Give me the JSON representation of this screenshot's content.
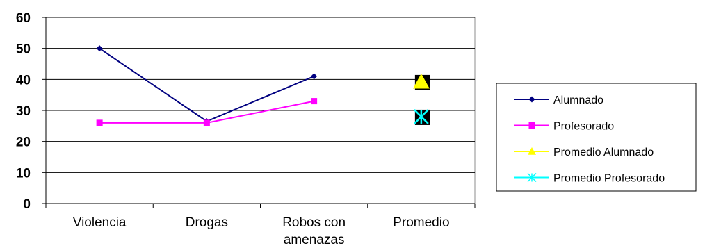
{
  "chart_data": {
    "type": "line",
    "categories": [
      "Violencia",
      "Drogas",
      "Robos con amenazas",
      "Promedio"
    ],
    "category_lines": [
      [
        "Violencia"
      ],
      [
        "Drogas"
      ],
      [
        "Robos con",
        "amenazas"
      ],
      [
        "Promedio"
      ]
    ],
    "ylim": [
      0,
      60
    ],
    "yticks": [
      "0",
      "10",
      "20",
      "30",
      "40",
      "50",
      "60"
    ],
    "grid": true,
    "legend_position": "right",
    "series": [
      {
        "name": "Alumnado",
        "values": [
          50,
          26.5,
          41,
          null
        ],
        "color": "#000080",
        "marker": "diamond"
      },
      {
        "name": "Profesorado",
        "values": [
          26,
          26,
          33,
          null
        ],
        "color": "#ff00ff",
        "marker": "square"
      },
      {
        "name": "Promedio Alumnado",
        "values": [
          null,
          null,
          null,
          39.2
        ],
        "color": "#ffff00",
        "marker": "triangle"
      },
      {
        "name": "Promedio Profesorado",
        "values": [
          null,
          null,
          null,
          28
        ],
        "color": "#00ffff",
        "marker": "asterisk"
      }
    ]
  }
}
